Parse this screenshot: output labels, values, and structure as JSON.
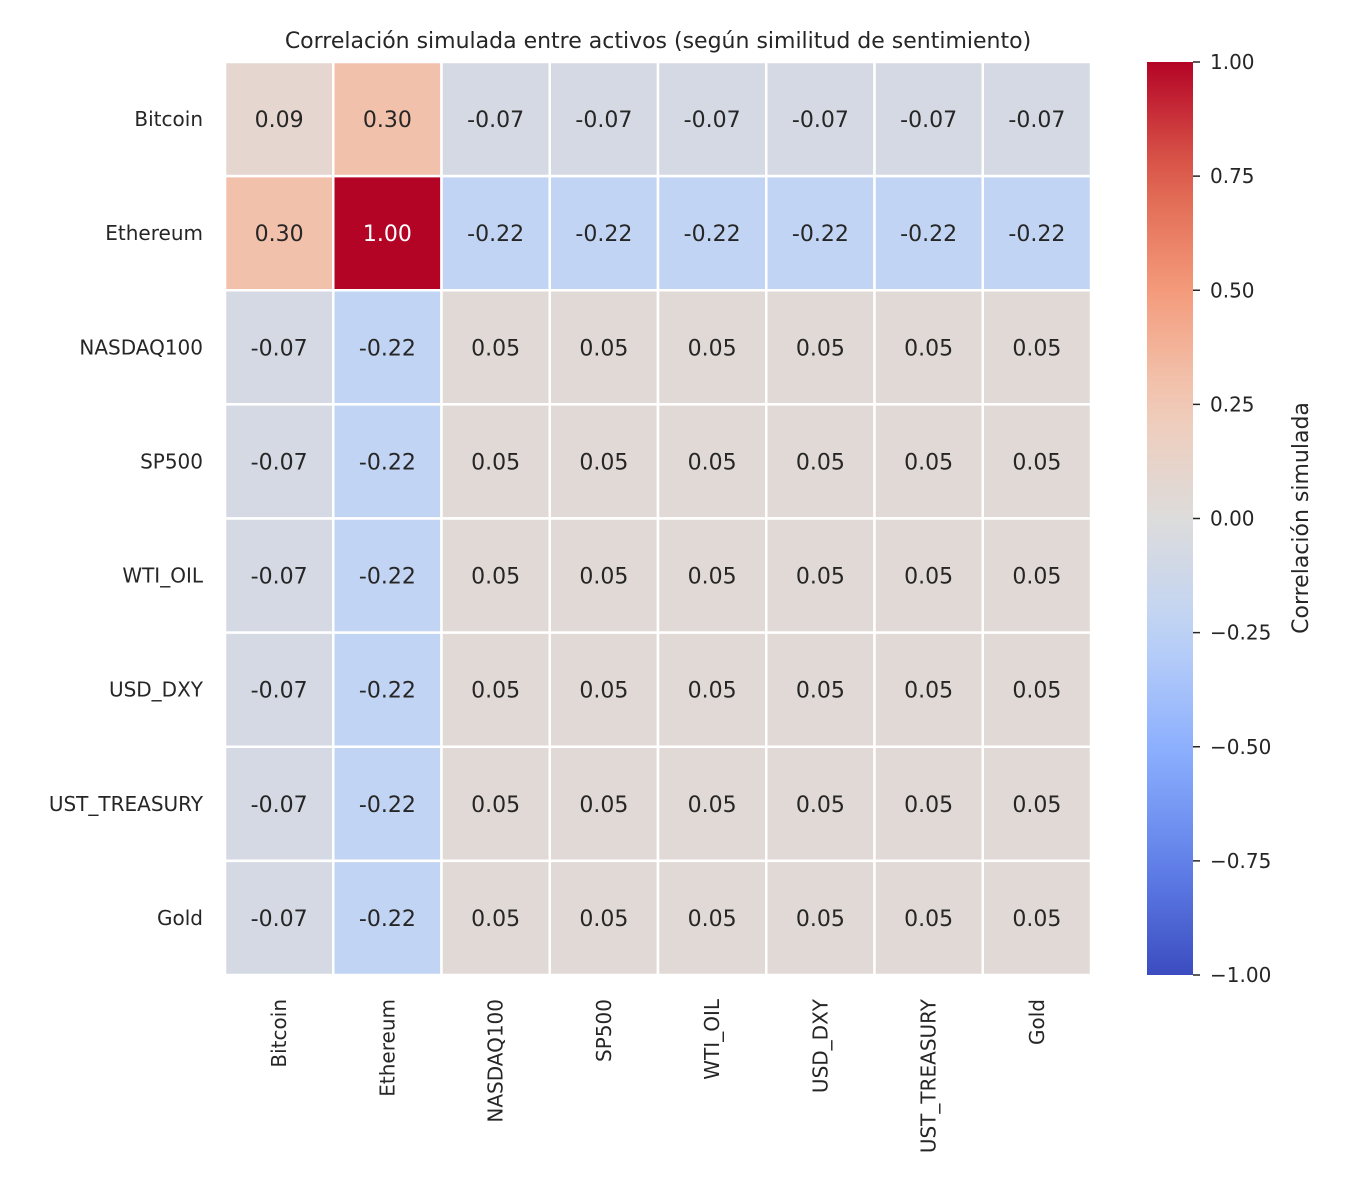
{
  "chart_data": {
    "type": "heatmap",
    "title": "Correlación simulada entre activos (según similitud de sentimiento)",
    "row_labels": [
      "Bitcoin",
      "Ethereum",
      "NASDAQ100",
      "SP500",
      "WTI_OIL",
      "USD_DXY",
      "UST_TREASURY",
      "Gold"
    ],
    "col_labels": [
      "Bitcoin",
      "Ethereum",
      "NASDAQ100",
      "SP500",
      "WTI_OIL",
      "USD_DXY",
      "UST_TREASURY",
      "Gold"
    ],
    "values": [
      [
        0.09,
        0.3,
        -0.07,
        -0.07,
        -0.07,
        -0.07,
        -0.07,
        -0.07
      ],
      [
        0.3,
        1.0,
        -0.22,
        -0.22,
        -0.22,
        -0.22,
        -0.22,
        -0.22
      ],
      [
        -0.07,
        -0.22,
        0.05,
        0.05,
        0.05,
        0.05,
        0.05,
        0.05
      ],
      [
        -0.07,
        -0.22,
        0.05,
        0.05,
        0.05,
        0.05,
        0.05,
        0.05
      ],
      [
        -0.07,
        -0.22,
        0.05,
        0.05,
        0.05,
        0.05,
        0.05,
        0.05
      ],
      [
        -0.07,
        -0.22,
        0.05,
        0.05,
        0.05,
        0.05,
        0.05,
        0.05
      ],
      [
        -0.07,
        -0.22,
        0.05,
        0.05,
        0.05,
        0.05,
        0.05,
        0.05
      ],
      [
        -0.07,
        -0.22,
        0.05,
        0.05,
        0.05,
        0.05,
        0.05,
        0.05
      ]
    ],
    "annotation_format": "0.00",
    "colormap": "coolwarm",
    "vmin": -1.0,
    "vmax": 1.0,
    "colorbar": {
      "label": "Correlación simulada",
      "ticks": [
        1.0,
        0.75,
        0.5,
        0.25,
        0.0,
        -0.25,
        -0.5,
        -0.75,
        -1.0
      ],
      "tick_labels": [
        "1.00",
        "0.75",
        "0.50",
        "0.25",
        "0.00",
        "−0.25",
        "−0.50",
        "−0.75",
        "−1.00"
      ]
    },
    "grid_line_color": "#ffffff"
  }
}
